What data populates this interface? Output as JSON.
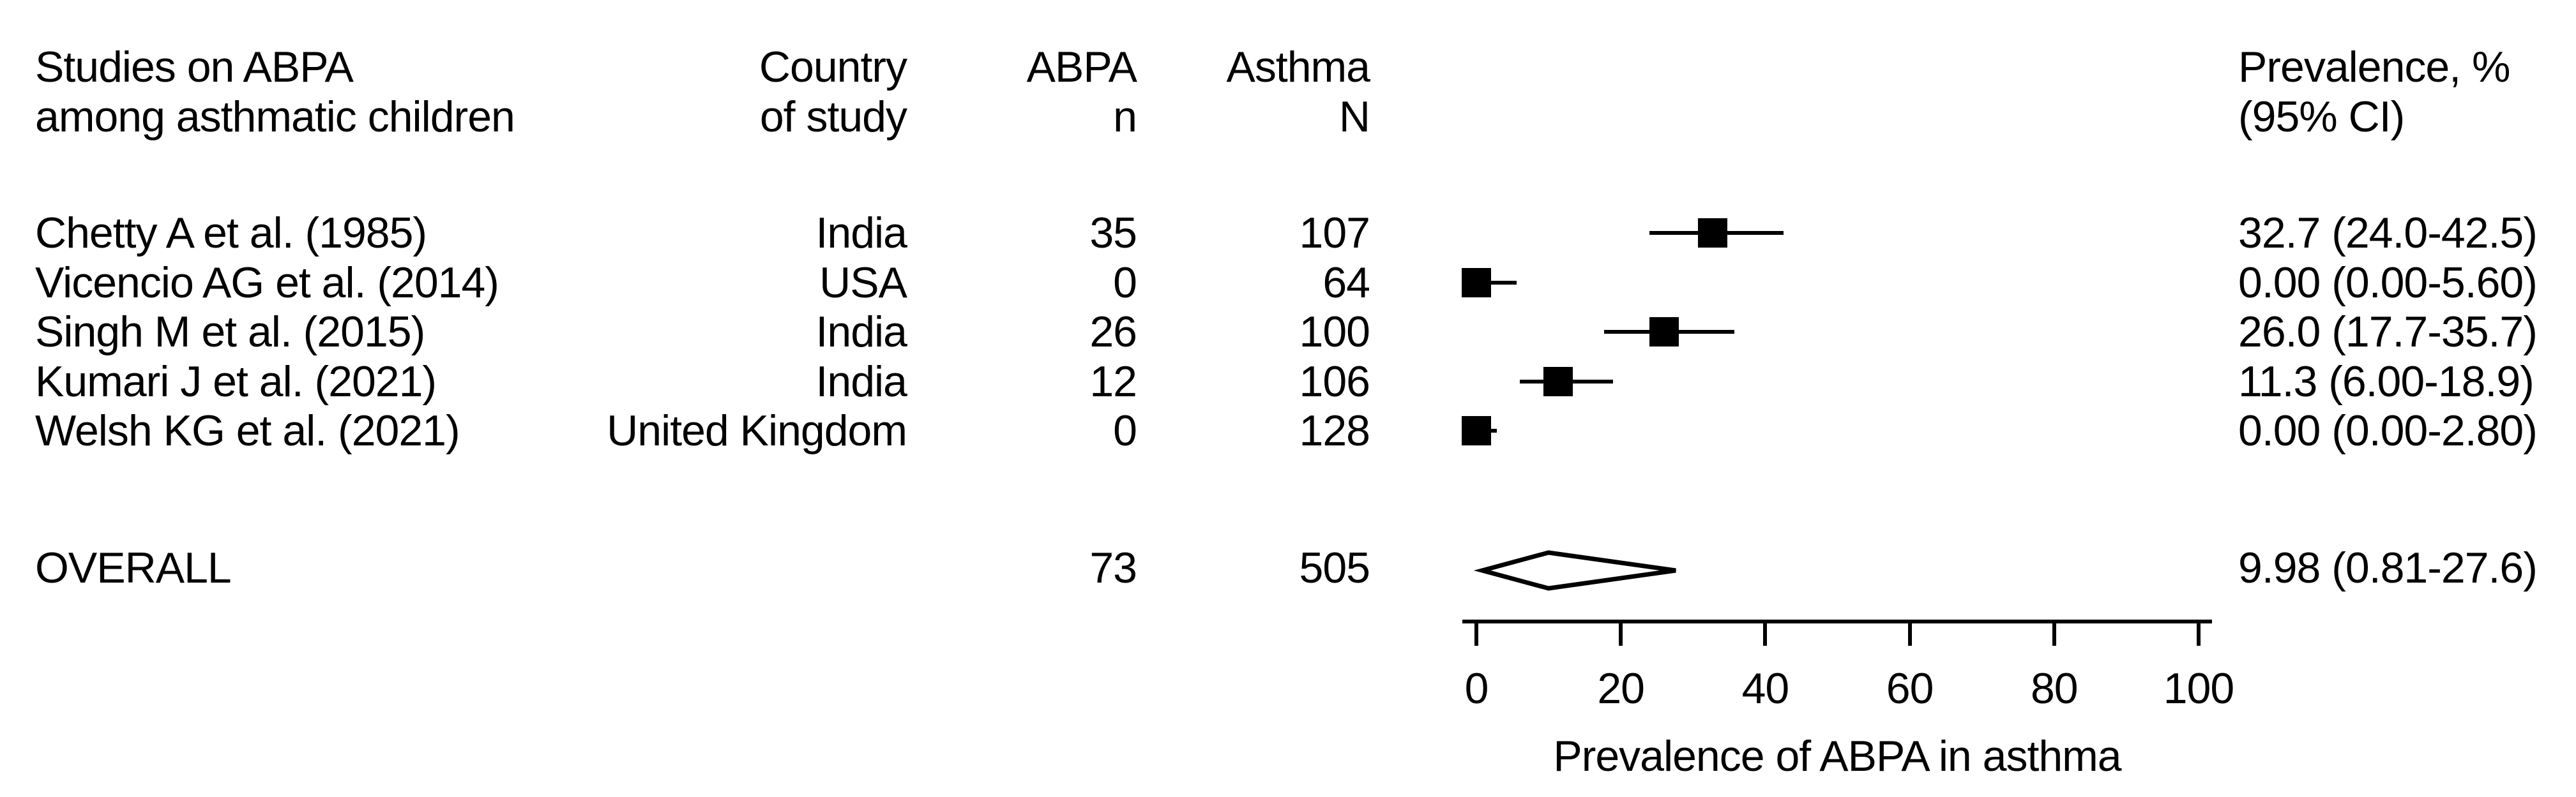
{
  "colors": {
    "background": "#ffffff",
    "text": "#000000",
    "marker": "#000000"
  },
  "headers": {
    "study_line1": "Studies on ABPA",
    "study_line2": "among asthmatic children",
    "country_line1": "Country",
    "country_line2": "of study",
    "abpa_line1": "ABPA",
    "abpa_line2": "n",
    "asthma_line1": "Asthma",
    "asthma_line2": "N",
    "prev_line1": "Prevalence, %",
    "prev_line2": "(95% CI)"
  },
  "chart_data": {
    "type": "forest",
    "xlabel": "Prevalence of ABPA in asthma",
    "xlim": [
      0,
      100
    ],
    "x_ticks": [
      0,
      20,
      40,
      60,
      80,
      100
    ],
    "grid": false,
    "studies": [
      {
        "study": "Chetty A et al. (1985)",
        "country": "India",
        "abpa_n": "35",
        "asthma_n": "107",
        "estimate": 32.7,
        "ci_low": 24.0,
        "ci_high": 42.5,
        "label": "32.7 (24.0-42.5)"
      },
      {
        "study": "Vicencio AG et al. (2014)",
        "country": "USA",
        "abpa_n": "0",
        "asthma_n": "64",
        "estimate": 0.0,
        "ci_low": 0.0,
        "ci_high": 5.6,
        "label": "0.00 (0.00-5.60)"
      },
      {
        "study": "Singh M et al. (2015)",
        "country": "India",
        "abpa_n": "26",
        "asthma_n": "100",
        "estimate": 26.0,
        "ci_low": 17.7,
        "ci_high": 35.7,
        "label": "26.0 (17.7-35.7)"
      },
      {
        "study": "Kumari J et al. (2021)",
        "country": "India",
        "abpa_n": "12",
        "asthma_n": "106",
        "estimate": 11.3,
        "ci_low": 6.0,
        "ci_high": 18.9,
        "label": "11.3 (6.00-18.9)"
      },
      {
        "study": "Welsh KG et al. (2021)",
        "country": "United Kingdom",
        "abpa_n": "0",
        "asthma_n": "128",
        "estimate": 0.0,
        "ci_low": 0.0,
        "ci_high": 2.8,
        "label": "0.00 (0.00-2.80)"
      }
    ],
    "overall": {
      "study": "OVERALL",
      "abpa_n": "73",
      "asthma_n": "505",
      "estimate": 9.98,
      "ci_low": 0.81,
      "ci_high": 27.6,
      "label": "9.98 (0.81-27.6)"
    }
  }
}
